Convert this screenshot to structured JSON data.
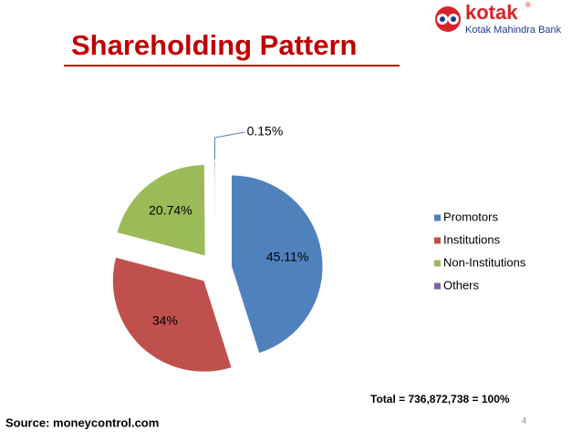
{
  "slide": {
    "logo_name": "kotak",
    "logo_subtitle": "Kotak Mahindra Bank",
    "logo_mark": "®",
    "source": "Source: moneycontrol.com",
    "page_number": 4
  },
  "chart_data": {
    "type": "pie",
    "title": "Shareholding Pattern",
    "categories": [
      "Promotors",
      "Institutions",
      "Non-Institutions",
      "Others"
    ],
    "values": [
      45.11,
      34,
      20.74,
      0.15
    ],
    "value_labels": [
      "45.11%",
      "34%",
      "20.74%",
      "0.15%"
    ],
    "colors": [
      "#4f81bd",
      "#c0504d",
      "#9bbb59",
      "#8064a2"
    ],
    "exploded": true,
    "legend": "right",
    "annotations": [
      "Total = 736,872,738  = 100%"
    ]
  }
}
